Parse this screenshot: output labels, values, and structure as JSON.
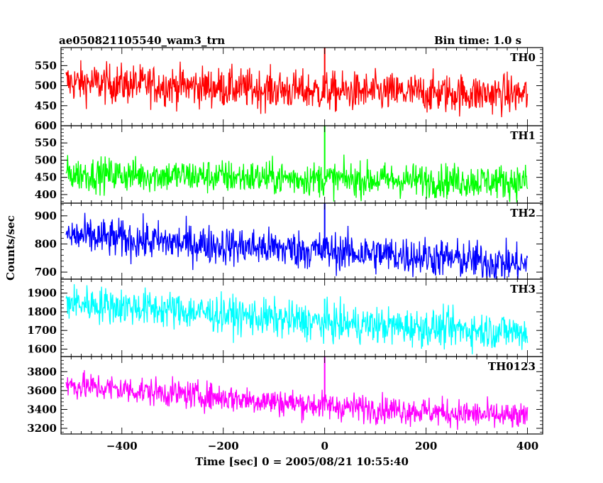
{
  "header": {
    "title": "ae050821105540_wam3_trn",
    "bin_time": "Bin time: 1.0 s"
  },
  "chart_data": {
    "type": "line",
    "title": "ae050821105540_wam3_trn",
    "subtitle": "Bin time: 1.0 s",
    "xlabel": "Time [sec] 0 = 2005/08/21 10:55:40",
    "ylabel": "Counts/sec",
    "xlim": [
      -520,
      430
    ],
    "x_ticks": [
      -400,
      -200,
      0,
      200,
      400
    ],
    "x_tick_labels": [
      "−400",
      "−200",
      "0",
      "200",
      "400"
    ],
    "grid": false,
    "panels": [
      {
        "name": "TH0",
        "color": "#ff0000",
        "ylim": [
          400,
          595
        ],
        "y_ticks": [
          450,
          500,
          550
        ],
        "y_tick_labels": [
          "450",
          "500",
          "550"
        ],
        "trend": [
          [
            -510,
            508
          ],
          [
            -300,
            500
          ],
          [
            0,
            485
          ],
          [
            400,
            478
          ]
        ],
        "noise": 25,
        "spike": {
          "x": 0,
          "y": 600
        }
      },
      {
        "name": "TH1",
        "color": "#00ff00",
        "ylim": [
          375,
          600
        ],
        "y_ticks": [
          400,
          450,
          500,
          550,
          600
        ],
        "y_tick_labels": [
          "400",
          "450",
          "500",
          "550",
          "600"
        ],
        "trend": [
          [
            -510,
            460
          ],
          [
            -300,
            455
          ],
          [
            0,
            445
          ],
          [
            400,
            437
          ]
        ],
        "noise": 25,
        "spike": {
          "x": 0,
          "y": 600
        }
      },
      {
        "name": "TH2",
        "color": "#0000ff",
        "ylim": [
          675,
          945
        ],
        "y_ticks": [
          700,
          800,
          900
        ],
        "y_tick_labels": [
          "700",
          "800",
          "900"
        ],
        "trend": [
          [
            -510,
            830
          ],
          [
            -300,
            805
          ],
          [
            0,
            775
          ],
          [
            200,
            755
          ],
          [
            400,
            725
          ]
        ],
        "noise": 35,
        "spike": {
          "x": 0,
          "y": 945
        }
      },
      {
        "name": "TH3",
        "color": "#00ffff",
        "ylim": [
          1560,
          1975
        ],
        "y_ticks": [
          1600,
          1700,
          1800,
          1900
        ],
        "y_tick_labels": [
          "1600",
          "1700",
          "1800",
          "1900"
        ],
        "trend": [
          [
            -510,
            1850
          ],
          [
            -300,
            1810
          ],
          [
            0,
            1740
          ],
          [
            200,
            1715
          ],
          [
            400,
            1690
          ]
        ],
        "noise": 50,
        "spike": {
          "x": 0,
          "y": 1870
        }
      },
      {
        "name": "TH0123",
        "color": "#ff00ff",
        "ylim": [
          3140,
          3960
        ],
        "y_ticks": [
          3200,
          3400,
          3600,
          3800
        ],
        "y_tick_labels": [
          "3200",
          "3400",
          "3600",
          "3800"
        ],
        "trend": [
          [
            -510,
            3660
          ],
          [
            -300,
            3570
          ],
          [
            0,
            3440
          ],
          [
            200,
            3380
          ],
          [
            400,
            3310
          ]
        ],
        "noise": 75,
        "spike": {
          "x": 0,
          "y": 3960
        }
      }
    ]
  }
}
